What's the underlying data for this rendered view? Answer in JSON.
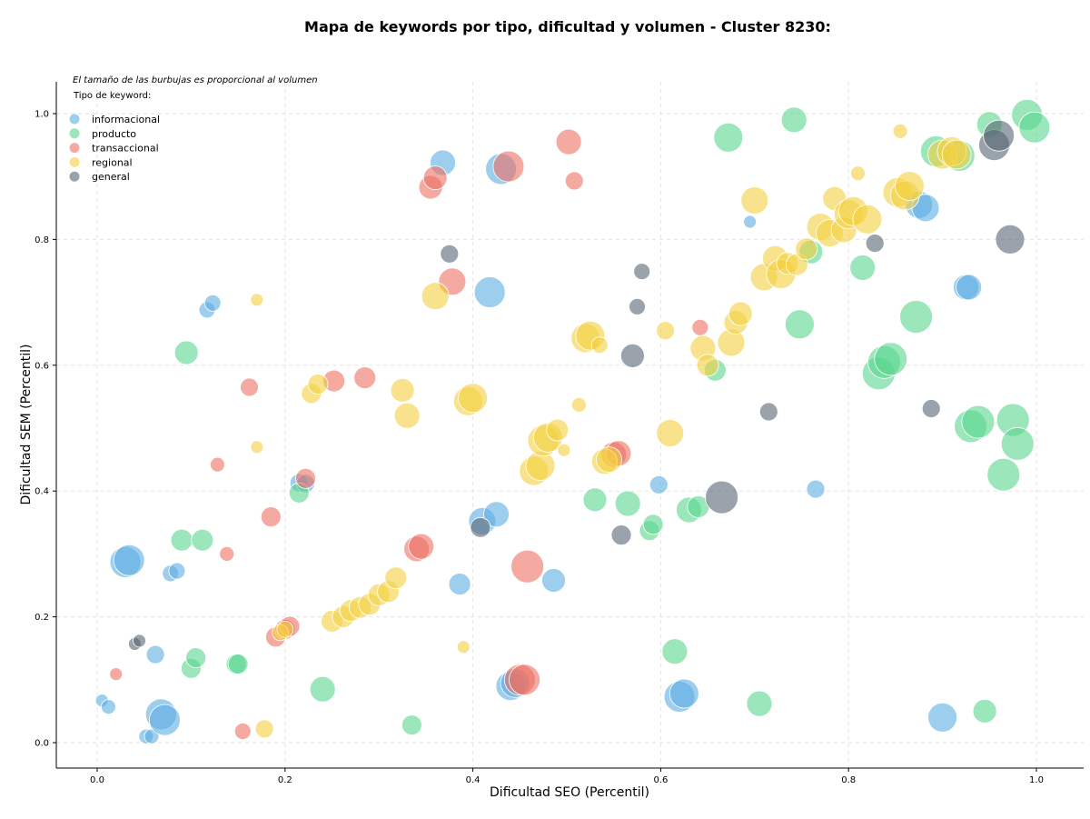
{
  "chart_data": {
    "type": "scatter",
    "title": "Mapa de keywords por tipo, dificultad y volumen - Cluster 8230:",
    "xlabel": "Dificultad SEO (Percentil)",
    "ylabel": "Dificultad SEM (Percentil)",
    "xlim": [
      -0.045,
      1.05
    ],
    "ylim": [
      -0.04,
      1.05
    ],
    "xticks": [
      "0.0",
      "0.2",
      "0.4",
      "0.6",
      "0.8",
      "1.0"
    ],
    "yticks": [
      "0.0",
      "0.2",
      "0.4",
      "0.6",
      "0.8",
      "1.0"
    ],
    "grid": true,
    "legend_placement": "top-left",
    "note": "El tamaño de las burbujas es proporcional al volumen",
    "legend_title": "Tipo de keyword:",
    "series": [
      {
        "name": "informacional",
        "color": "#5dade2",
        "points": [
          [
            0.005,
            0.067,
            7
          ],
          [
            0.012,
            0.057,
            8
          ],
          [
            0.03,
            0.287,
            17
          ],
          [
            0.034,
            0.29,
            17
          ],
          [
            0.052,
            0.01,
            8
          ],
          [
            0.058,
            0.01,
            8
          ],
          [
            0.062,
            0.14,
            10
          ],
          [
            0.068,
            0.045,
            17
          ],
          [
            0.072,
            0.036,
            17
          ],
          [
            0.078,
            0.269,
            9
          ],
          [
            0.085,
            0.273,
            9
          ],
          [
            0.117,
            0.688,
            9
          ],
          [
            0.123,
            0.699,
            9
          ],
          [
            0.215,
            0.413,
            10
          ],
          [
            0.222,
            0.412,
            10
          ],
          [
            0.368,
            0.922,
            14
          ],
          [
            0.386,
            0.252,
            12
          ],
          [
            0.418,
            0.716,
            17
          ],
          [
            0.41,
            0.352,
            15
          ],
          [
            0.425,
            0.363,
            14
          ],
          [
            0.43,
            0.912,
            17
          ],
          [
            0.44,
            0.09,
            16
          ],
          [
            0.445,
            0.095,
            16
          ],
          [
            0.486,
            0.258,
            13
          ],
          [
            0.598,
            0.41,
            10
          ],
          [
            0.62,
            0.073,
            17
          ],
          [
            0.625,
            0.078,
            16
          ],
          [
            0.695,
            0.828,
            7
          ],
          [
            0.765,
            0.403,
            10
          ],
          [
            0.875,
            0.855,
            15
          ],
          [
            0.882,
            0.85,
            15
          ],
          [
            0.9,
            0.04,
            16
          ],
          [
            0.925,
            0.724,
            14
          ],
          [
            0.928,
            0.724,
            14
          ]
        ]
      },
      {
        "name": "producto",
        "color": "#58d68d",
        "points": [
          [
            0.09,
            0.322,
            12
          ],
          [
            0.095,
            0.62,
            13
          ],
          [
            0.1,
            0.118,
            11
          ],
          [
            0.105,
            0.135,
            11
          ],
          [
            0.112,
            0.322,
            12
          ],
          [
            0.148,
            0.125,
            11
          ],
          [
            0.15,
            0.125,
            11
          ],
          [
            0.215,
            0.397,
            11
          ],
          [
            0.24,
            0.085,
            14
          ],
          [
            0.335,
            0.028,
            11
          ],
          [
            0.53,
            0.386,
            13
          ],
          [
            0.565,
            0.38,
            14
          ],
          [
            0.588,
            0.337,
            11
          ],
          [
            0.592,
            0.347,
            11
          ],
          [
            0.615,
            0.145,
            14
          ],
          [
            0.63,
            0.37,
            14
          ],
          [
            0.64,
            0.375,
            12
          ],
          [
            0.658,
            0.592,
            12
          ],
          [
            0.672,
            0.962,
            16
          ],
          [
            0.705,
            0.062,
            14
          ],
          [
            0.742,
            0.99,
            14
          ],
          [
            0.748,
            0.665,
            16
          ],
          [
            0.76,
            0.78,
            13
          ],
          [
            0.815,
            0.755,
            14
          ],
          [
            0.832,
            0.587,
            18
          ],
          [
            0.838,
            0.605,
            18
          ],
          [
            0.845,
            0.61,
            18
          ],
          [
            0.872,
            0.677,
            18
          ],
          [
            0.893,
            0.94,
            17
          ],
          [
            0.918,
            0.933,
            17
          ],
          [
            0.93,
            0.503,
            18
          ],
          [
            0.938,
            0.51,
            18
          ],
          [
            0.945,
            0.05,
            13
          ],
          [
            0.95,
            0.983,
            14
          ],
          [
            0.965,
            0.426,
            18
          ],
          [
            0.975,
            0.513,
            18
          ],
          [
            0.98,
            0.475,
            18
          ],
          [
            0.99,
            0.998,
            17
          ],
          [
            0.998,
            0.978,
            17
          ]
        ]
      },
      {
        "name": "transaccional",
        "color": "#ec7063",
        "points": [
          [
            0.02,
            0.109,
            7
          ],
          [
            0.128,
            0.442,
            8
          ],
          [
            0.138,
            0.3,
            8
          ],
          [
            0.155,
            0.018,
            9
          ],
          [
            0.162,
            0.565,
            10
          ],
          [
            0.185,
            0.359,
            11
          ],
          [
            0.19,
            0.168,
            11
          ],
          [
            0.2,
            0.18,
            11
          ],
          [
            0.205,
            0.185,
            11
          ],
          [
            0.222,
            0.42,
            11
          ],
          [
            0.252,
            0.575,
            12
          ],
          [
            0.285,
            0.58,
            12
          ],
          [
            0.34,
            0.308,
            14
          ],
          [
            0.345,
            0.312,
            14
          ],
          [
            0.355,
            0.883,
            13
          ],
          [
            0.36,
            0.898,
            13
          ],
          [
            0.378,
            0.733,
            15
          ],
          [
            0.438,
            0.916,
            17
          ],
          [
            0.45,
            0.1,
            17
          ],
          [
            0.455,
            0.1,
            17
          ],
          [
            0.458,
            0.28,
            18
          ],
          [
            0.502,
            0.955,
            14
          ],
          [
            0.508,
            0.893,
            10
          ],
          [
            0.55,
            0.458,
            14
          ],
          [
            0.555,
            0.46,
            14
          ],
          [
            0.642,
            0.66,
            9
          ]
        ]
      },
      {
        "name": "regional",
        "color": "#f4d03f",
        "points": [
          [
            0.17,
            0.47,
            7
          ],
          [
            0.17,
            0.704,
            7
          ],
          [
            0.178,
            0.022,
            10
          ],
          [
            0.195,
            0.175,
            9
          ],
          [
            0.2,
            0.18,
            9
          ],
          [
            0.228,
            0.555,
            11
          ],
          [
            0.235,
            0.57,
            11
          ],
          [
            0.25,
            0.193,
            12
          ],
          [
            0.262,
            0.2,
            12
          ],
          [
            0.27,
            0.21,
            12
          ],
          [
            0.28,
            0.215,
            12
          ],
          [
            0.29,
            0.22,
            12
          ],
          [
            0.3,
            0.235,
            12
          ],
          [
            0.31,
            0.24,
            12
          ],
          [
            0.318,
            0.262,
            12
          ],
          [
            0.325,
            0.56,
            13
          ],
          [
            0.33,
            0.52,
            14
          ],
          [
            0.36,
            0.71,
            15
          ],
          [
            0.39,
            0.152,
            7
          ],
          [
            0.395,
            0.543,
            16
          ],
          [
            0.4,
            0.548,
            16
          ],
          [
            0.465,
            0.432,
            16
          ],
          [
            0.472,
            0.44,
            16
          ],
          [
            0.475,
            0.48,
            17
          ],
          [
            0.48,
            0.485,
            16
          ],
          [
            0.49,
            0.497,
            12
          ],
          [
            0.497,
            0.465,
            7
          ],
          [
            0.513,
            0.537,
            8
          ],
          [
            0.52,
            0.643,
            16
          ],
          [
            0.525,
            0.647,
            16
          ],
          [
            0.535,
            0.632,
            9
          ],
          [
            0.54,
            0.447,
            14
          ],
          [
            0.545,
            0.45,
            14
          ],
          [
            0.605,
            0.655,
            10
          ],
          [
            0.61,
            0.492,
            15
          ],
          [
            0.645,
            0.627,
            14
          ],
          [
            0.65,
            0.6,
            12
          ],
          [
            0.675,
            0.636,
            15
          ],
          [
            0.68,
            0.668,
            13
          ],
          [
            0.685,
            0.682,
            13
          ],
          [
            0.7,
            0.862,
            15
          ],
          [
            0.71,
            0.74,
            15
          ],
          [
            0.722,
            0.77,
            14
          ],
          [
            0.728,
            0.745,
            16
          ],
          [
            0.735,
            0.762,
            12
          ],
          [
            0.745,
            0.76,
            12
          ],
          [
            0.755,
            0.785,
            12
          ],
          [
            0.77,
            0.82,
            15
          ],
          [
            0.78,
            0.81,
            15
          ],
          [
            0.785,
            0.865,
            13
          ],
          [
            0.795,
            0.815,
            14
          ],
          [
            0.8,
            0.84,
            16
          ],
          [
            0.805,
            0.845,
            16
          ],
          [
            0.81,
            0.905,
            8
          ],
          [
            0.82,
            0.832,
            16
          ],
          [
            0.852,
            0.875,
            16
          ],
          [
            0.855,
            0.972,
            8
          ],
          [
            0.86,
            0.87,
            16
          ],
          [
            0.865,
            0.885,
            16
          ],
          [
            0.9,
            0.935,
            16
          ],
          [
            0.91,
            0.94,
            16
          ],
          [
            0.915,
            0.935,
            16
          ]
        ]
      },
      {
        "name": "general",
        "color": "#566573",
        "points": [
          [
            0.04,
            0.157,
            7
          ],
          [
            0.045,
            0.162,
            7
          ],
          [
            0.375,
            0.777,
            10
          ],
          [
            0.408,
            0.342,
            11
          ],
          [
            0.558,
            0.33,
            11
          ],
          [
            0.57,
            0.615,
            13
          ],
          [
            0.575,
            0.693,
            9
          ],
          [
            0.58,
            0.749,
            9
          ],
          [
            0.665,
            0.39,
            18
          ],
          [
            0.715,
            0.526,
            10
          ],
          [
            0.828,
            0.794,
            10
          ],
          [
            0.888,
            0.531,
            10
          ],
          [
            0.955,
            0.95,
            17
          ],
          [
            0.96,
            0.965,
            17
          ],
          [
            0.972,
            0.8,
            16
          ]
        ]
      }
    ]
  }
}
